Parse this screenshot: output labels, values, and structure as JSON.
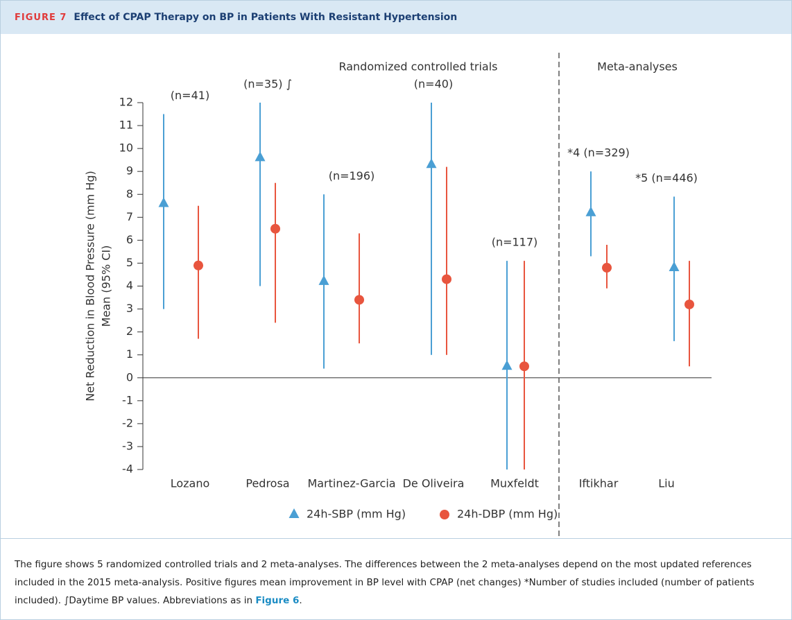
{
  "header": {
    "label": "FIGURE 7",
    "title": "Effect of CPAP Therapy on BP in Patients With Resistant Hypertension"
  },
  "chart_data": {
    "type": "errorbar",
    "y_label": [
      "Net Reduction in Blood Pressure (mm Hg)",
      "Mean (95% CI)"
    ],
    "groups": [
      "Randomized controlled trials",
      "Meta-analyses"
    ],
    "categories": [
      "Lozano",
      "Pedrosa",
      "Martinez-Garcia",
      "De Oliveira",
      "Muxfeldt",
      "Iftikhar",
      "Liu"
    ],
    "annotations": [
      "(n=41)",
      "(n=35) ∫",
      "(n=196)",
      "(n=40)",
      "(n=117)",
      "*4 (n=329)",
      "*5 (n=446)"
    ],
    "series": [
      {
        "name": "24h-SBP (mm Hg)",
        "color": "#4a9fd4",
        "marker": "triangle",
        "values": [
          7.6,
          9.6,
          4.2,
          9.3,
          0.5,
          7.2,
          4.8
        ],
        "low": [
          3.0,
          4.0,
          0.4,
          1.0,
          -4.0,
          5.3,
          1.6
        ],
        "high": [
          11.5,
          12.0,
          8.0,
          12.0,
          5.1,
          9.0,
          7.9
        ]
      },
      {
        "name": "24h-DBP (mm Hg)",
        "color": "#e8553e",
        "marker": "circle",
        "values": [
          4.9,
          6.5,
          3.4,
          4.3,
          0.5,
          4.8,
          3.2
        ],
        "low": [
          1.7,
          2.4,
          1.5,
          1.0,
          -4.0,
          3.9,
          0.5
        ],
        "high": [
          7.5,
          8.5,
          6.3,
          9.2,
          5.1,
          5.8,
          5.1
        ]
      }
    ],
    "ylim": [
      -4,
      12
    ],
    "yticks": [
      -4,
      -3,
      -2,
      -1,
      0,
      1,
      2,
      3,
      4,
      5,
      6,
      7,
      8,
      9,
      10,
      11,
      12
    ]
  },
  "caption": {
    "text": "The figure shows 5 randomized controlled trials and 2 meta-analyses. The differences between the 2 meta-analyses depend on the most updated references included in the 2015 meta-analysis. Positive figures mean improvement in BP level with CPAP (net changes) *Number of studies included (number of patients included). ∫Daytime BP values. Abbreviations as in ",
    "link": "Figure 6",
    "end": "."
  }
}
